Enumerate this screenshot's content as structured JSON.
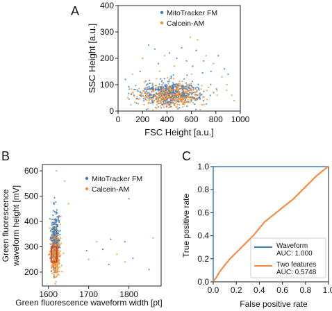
{
  "colors": {
    "mitotracker": "#3a7fbf",
    "calcein": "#f39035",
    "waveform_line": "#3a7fbf",
    "twofeatures_line": "#f0883b",
    "gate": "#d9421f"
  },
  "chart_data": [
    {
      "id": "A",
      "panel_label": "A",
      "type": "scatter",
      "xlabel": "FSC Height [a.u.]",
      "ylabel": "SSC Height [a.u.]",
      "xlim": [
        0,
        1000
      ],
      "ylim": [
        0,
        400
      ],
      "xticks": [
        0,
        200,
        400,
        600,
        800,
        1000
      ],
      "yticks": [
        0,
        100,
        200,
        300,
        400
      ],
      "legend_position": "upper-right",
      "series": [
        {
          "name": "MitoTracker FM",
          "color": "#3a7fbf",
          "cluster": {
            "x_center": 430,
            "x_spread": 170,
            "y_center": 68,
            "y_spread": 30,
            "n": 420
          },
          "outliers": [
            [
              60,
              120
            ],
            [
              130,
              60
            ],
            [
              180,
              150
            ],
            [
              250,
              250
            ],
            [
              300,
              235
            ],
            [
              420,
              220
            ],
            [
              480,
              200
            ],
            [
              520,
              240
            ],
            [
              610,
              170
            ],
            [
              640,
              230
            ],
            [
              700,
              190
            ],
            [
              760,
              150
            ],
            [
              820,
              210
            ],
            [
              870,
              160
            ],
            [
              900,
              140
            ],
            [
              330,
              180
            ],
            [
              560,
              190
            ]
          ]
        },
        {
          "name": "Calcein-AM",
          "color": "#f39035",
          "cluster": {
            "x_center": 440,
            "x_spread": 160,
            "y_center": 60,
            "y_spread": 26,
            "n": 520
          },
          "outliers": [
            [
              650,
              270
            ],
            [
              590,
              280
            ],
            [
              720,
              210
            ],
            [
              780,
              180
            ],
            [
              850,
              130
            ],
            [
              890,
              100
            ],
            [
              930,
              60
            ],
            [
              120,
              140
            ],
            [
              200,
              200
            ],
            [
              380,
              210
            ],
            [
              460,
              170
            ],
            [
              600,
              140
            ],
            [
              740,
              90
            ],
            [
              810,
              60
            ],
            [
              950,
              40
            ]
          ]
        }
      ]
    },
    {
      "id": "B",
      "panel_label": "B",
      "type": "scatter",
      "xlabel": "Green fluorescence waveform width [pt]",
      "ylabel_lines": [
        "Green fluorescence",
        "waveform height [mV]"
      ],
      "xlim": [
        1585,
        1880
      ],
      "ylim": [
        145,
        625
      ],
      "xticks": [
        1600,
        1700,
        1800
      ],
      "yticks": [
        200,
        300,
        400,
        500,
        600
      ],
      "legend_position": "upper-right",
      "gate": {
        "x": [
          1607,
          1621
        ],
        "y": [
          240,
          300
        ]
      },
      "series": [
        {
          "name": "MitoTracker FM",
          "color": "#3a7fbf",
          "cluster": {
            "x_center": 1616,
            "x_spread": 6,
            "y_center": 330,
            "y_spread": 70,
            "n": 320
          },
          "outliers": [
            [
              1735,
              290
            ],
            [
              1750,
              230
            ],
            [
              1755,
              330
            ],
            [
              1790,
              320
            ],
            [
              1800,
              490
            ],
            [
              1810,
              255
            ],
            [
              1695,
              285
            ],
            [
              1850,
              210
            ]
          ]
        },
        {
          "name": "Calcein-AM",
          "color": "#f39035",
          "cluster": {
            "x_center": 1618,
            "x_spread": 7,
            "y_center": 280,
            "y_spread": 55,
            "n": 420
          },
          "outliers": [
            [
              1620,
              600
            ],
            [
              1640,
              560
            ],
            [
              1650,
              470
            ],
            [
              1700,
              250
            ],
            [
              1720,
              320
            ],
            [
              1770,
              270
            ],
            [
              1790,
              240
            ],
            [
              1860,
              335
            ]
          ]
        }
      ]
    },
    {
      "id": "C",
      "panel_label": "C",
      "type": "line",
      "xlabel": "False positive rate",
      "ylabel": "True positive rate",
      "xlim": [
        0,
        1
      ],
      "ylim": [
        0,
        1
      ],
      "xticks": [
        0.0,
        0.2,
        0.4,
        0.6,
        0.8,
        1.0
      ],
      "yticks": [
        0.0,
        0.2,
        0.4,
        0.6,
        0.8,
        1.0
      ],
      "xtick_labels": [
        "0.0",
        "0.2",
        "0.4",
        "0.6",
        "0.8",
        "1.0"
      ],
      "ytick_labels": [
        "0.0",
        "0.2",
        "0.4",
        "0.6",
        "0.8",
        "1.0"
      ],
      "legend_position": "lower-right",
      "series": [
        {
          "name": "Waveform",
          "auc_label": "AUC: 1.000",
          "color": "#3a7fbf",
          "x": [
            0.0,
            0.0,
            1.0
          ],
          "y": [
            0.0,
            1.0,
            1.0
          ]
        },
        {
          "name": "Two features",
          "auc_label": "AUC: 0.5748",
          "color": "#f0883b",
          "x": [
            0.0,
            0.03,
            0.06,
            0.1,
            0.15,
            0.2,
            0.25,
            0.3,
            0.35,
            0.4,
            0.45,
            0.5,
            0.55,
            0.6,
            0.65,
            0.7,
            0.75,
            0.8,
            0.85,
            0.9,
            0.95,
            1.0
          ],
          "y": [
            0.0,
            0.04,
            0.09,
            0.14,
            0.2,
            0.25,
            0.3,
            0.35,
            0.4,
            0.46,
            0.52,
            0.56,
            0.6,
            0.64,
            0.68,
            0.72,
            0.77,
            0.82,
            0.87,
            0.92,
            0.96,
            1.0
          ]
        }
      ]
    }
  ]
}
